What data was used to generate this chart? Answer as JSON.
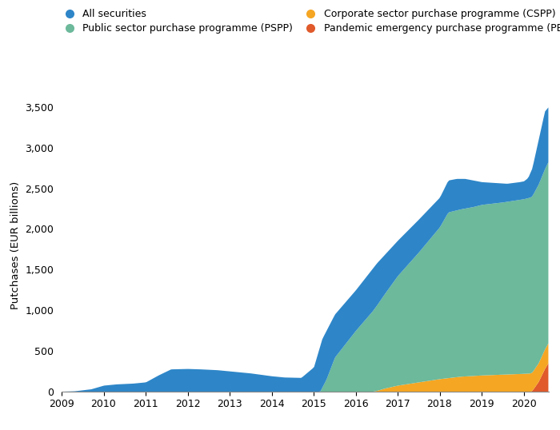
{
  "ylabel": "Putchases (EUR billions)",
  "colors": {
    "all_securities": "#2e86c8",
    "pspp": "#6cb99b",
    "cspp": "#f5a623",
    "pepp": "#e05a2b"
  },
  "legend_labels": [
    "All securities",
    "Public sector purchase programme (PSPP)",
    "Corporate sector purchase programme (CSPP)",
    "Pandemic emergency purchase programme (PEPP)"
  ],
  "ylim": [
    0,
    3600
  ],
  "yticks": [
    0,
    500,
    1000,
    1500,
    2000,
    2500,
    3000,
    3500
  ]
}
